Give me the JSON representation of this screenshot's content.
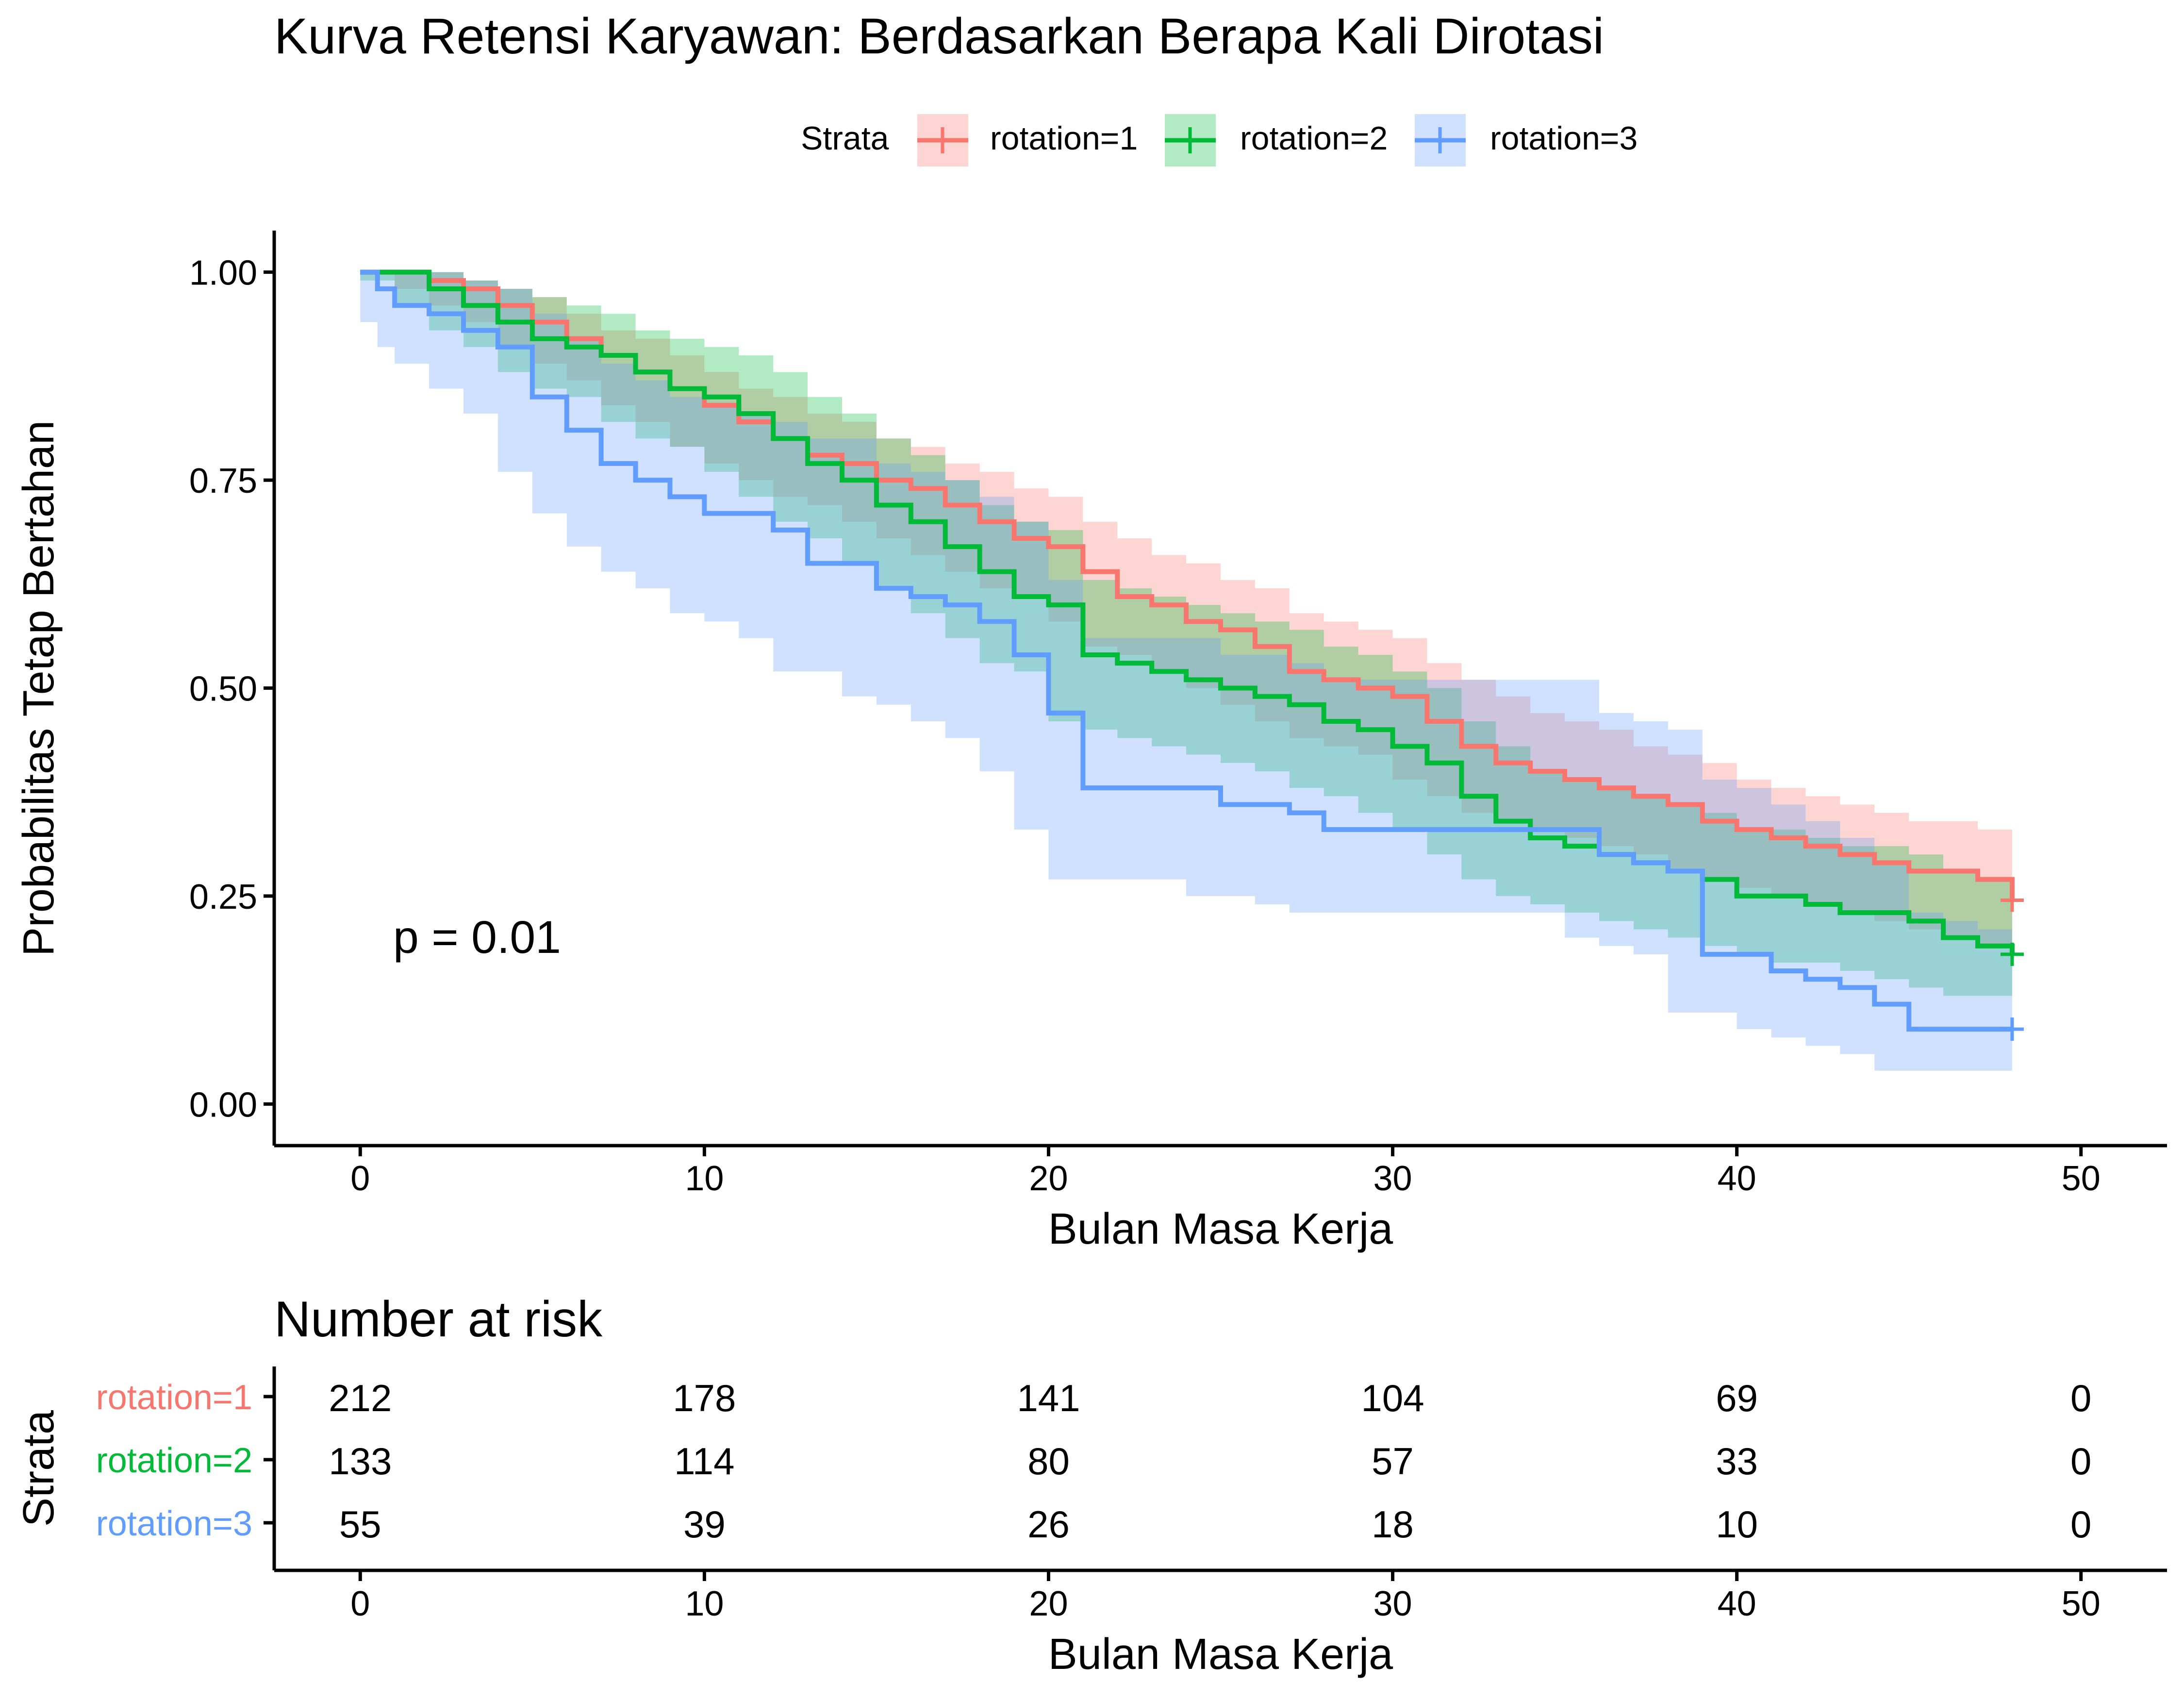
{
  "title": "Kurva Retensi Karyawan: Berdasarkan Berapa Kali Dirotasi",
  "legend": {
    "title": "Strata",
    "items": [
      "rotation=1",
      "rotation=2",
      "rotation=3"
    ]
  },
  "pvalue": "p = 0.01",
  "colors": {
    "rotation=1": "#F8766D",
    "rotation=2": "#00BA38",
    "rotation=3": "#619CFF"
  },
  "chart_data": [
    {
      "type": "line",
      "subtype": "kaplan-meier survival curve with confidence bands",
      "title": "Kurva Retensi Karyawan: Berdasarkan Berapa Kali Dirotasi",
      "xlabel": "Bulan Masa Kerja",
      "ylabel": "Probabilitas Tetap Bertahan",
      "xlim": [
        -2.5,
        52.5
      ],
      "ylim": [
        -0.05,
        1.05
      ],
      "xticks": [
        0,
        10,
        20,
        30,
        40,
        50
      ],
      "xtick_labels": [
        "0",
        "10",
        "20",
        "30",
        "40",
        "50"
      ],
      "yticks": [
        0,
        0.25,
        0.5,
        0.75,
        1
      ],
      "ytick_labels": [
        "0.00",
        "0.25",
        "0.50",
        "0.75",
        "1.00"
      ],
      "grid": false,
      "legend_position": "top",
      "annotation": "p = 0.01",
      "series": [
        {
          "name": "rotation=1",
          "color": "#F8766D",
          "x": [
            0,
            1,
            2,
            3,
            4,
            5,
            6,
            7,
            8,
            9,
            10,
            11,
            12,
            13,
            14,
            15,
            16,
            17,
            18,
            19,
            20,
            21,
            22,
            23,
            24,
            25,
            26,
            27,
            28,
            29,
            30,
            31,
            32,
            33,
            34,
            35,
            36,
            37,
            38,
            39,
            40,
            41,
            42,
            43,
            44,
            45,
            46,
            47,
            48
          ],
          "y": [
            1.0,
            1.0,
            0.99,
            0.98,
            0.96,
            0.94,
            0.92,
            0.9,
            0.88,
            0.86,
            0.84,
            0.82,
            0.8,
            0.78,
            0.77,
            0.75,
            0.74,
            0.72,
            0.7,
            0.68,
            0.67,
            0.64,
            0.61,
            0.6,
            0.58,
            0.57,
            0.55,
            0.52,
            0.51,
            0.5,
            0.49,
            0.46,
            0.43,
            0.41,
            0.4,
            0.39,
            0.38,
            0.37,
            0.36,
            0.34,
            0.33,
            0.32,
            0.31,
            0.3,
            0.29,
            0.28,
            0.28,
            0.27,
            0.245
          ],
          "lower": [
            1.0,
            1.0,
            0.98,
            0.96,
            0.94,
            0.91,
            0.89,
            0.87,
            0.84,
            0.82,
            0.79,
            0.77,
            0.75,
            0.73,
            0.72,
            0.7,
            0.68,
            0.66,
            0.64,
            0.62,
            0.61,
            0.58,
            0.55,
            0.54,
            0.52,
            0.5,
            0.48,
            0.46,
            0.44,
            0.43,
            0.42,
            0.39,
            0.37,
            0.35,
            0.34,
            0.33,
            0.32,
            0.31,
            0.3,
            0.28,
            0.27,
            0.26,
            0.25,
            0.24,
            0.23,
            0.22,
            0.21,
            0.2,
            0.19
          ],
          "upper": [
            1.0,
            1.0,
            1.0,
            0.99,
            0.98,
            0.97,
            0.95,
            0.93,
            0.92,
            0.9,
            0.88,
            0.86,
            0.85,
            0.83,
            0.82,
            0.8,
            0.79,
            0.77,
            0.76,
            0.74,
            0.73,
            0.7,
            0.68,
            0.66,
            0.65,
            0.63,
            0.62,
            0.59,
            0.58,
            0.57,
            0.56,
            0.53,
            0.51,
            0.49,
            0.47,
            0.46,
            0.45,
            0.43,
            0.42,
            0.41,
            0.39,
            0.38,
            0.37,
            0.36,
            0.35,
            0.34,
            0.34,
            0.33,
            0.3
          ],
          "censor_x": 48,
          "censor_y": 0.245
        },
        {
          "name": "rotation=2",
          "color": "#00BA38",
          "x": [
            0,
            1,
            2,
            3,
            4,
            5,
            6,
            7,
            8,
            9,
            10,
            11,
            12,
            13,
            14,
            15,
            16,
            17,
            18,
            19,
            20,
            21,
            22,
            23,
            24,
            25,
            26,
            27,
            28,
            29,
            30,
            31,
            32,
            33,
            34,
            35,
            36,
            37,
            38,
            39,
            40,
            41,
            42,
            43,
            44,
            45,
            46,
            47,
            48
          ],
          "y": [
            1.0,
            1.0,
            0.98,
            0.96,
            0.94,
            0.92,
            0.91,
            0.9,
            0.88,
            0.86,
            0.85,
            0.83,
            0.8,
            0.77,
            0.75,
            0.72,
            0.7,
            0.67,
            0.64,
            0.61,
            0.6,
            0.54,
            0.53,
            0.52,
            0.51,
            0.5,
            0.49,
            0.48,
            0.46,
            0.45,
            0.43,
            0.41,
            0.37,
            0.34,
            0.32,
            0.31,
            0.3,
            0.29,
            0.28,
            0.27,
            0.25,
            0.25,
            0.24,
            0.23,
            0.23,
            0.22,
            0.2,
            0.19,
            0.18
          ],
          "lower": [
            1.0,
            0.99,
            0.96,
            0.93,
            0.91,
            0.88,
            0.86,
            0.85,
            0.82,
            0.8,
            0.79,
            0.76,
            0.73,
            0.7,
            0.68,
            0.65,
            0.62,
            0.59,
            0.56,
            0.53,
            0.52,
            0.46,
            0.45,
            0.44,
            0.43,
            0.42,
            0.41,
            0.4,
            0.38,
            0.37,
            0.35,
            0.33,
            0.3,
            0.27,
            0.25,
            0.24,
            0.23,
            0.22,
            0.21,
            0.2,
            0.19,
            0.18,
            0.17,
            0.17,
            0.16,
            0.15,
            0.14,
            0.13,
            0.13
          ],
          "upper": [
            1.0,
            1.0,
            1.0,
            0.99,
            0.98,
            0.97,
            0.96,
            0.95,
            0.93,
            0.92,
            0.91,
            0.9,
            0.88,
            0.85,
            0.83,
            0.8,
            0.78,
            0.75,
            0.72,
            0.7,
            0.69,
            0.63,
            0.62,
            0.61,
            0.6,
            0.59,
            0.58,
            0.57,
            0.55,
            0.54,
            0.52,
            0.5,
            0.46,
            0.43,
            0.4,
            0.39,
            0.38,
            0.37,
            0.36,
            0.35,
            0.33,
            0.33,
            0.32,
            0.31,
            0.31,
            0.3,
            0.28,
            0.27,
            0.26
          ],
          "censor_x": 48,
          "censor_y": 0.18
        },
        {
          "name": "rotation=3",
          "color": "#619CFF",
          "x": [
            0,
            0.5,
            1,
            2,
            3,
            4,
            5,
            6,
            7,
            8,
            9,
            10,
            11,
            12,
            13,
            14,
            15,
            16,
            17,
            18,
            19,
            20,
            21,
            22,
            23,
            24,
            25,
            26,
            27,
            28,
            29,
            30,
            31,
            32,
            33,
            34,
            35,
            36,
            37,
            38,
            39,
            40,
            41,
            42,
            43,
            44,
            45,
            46,
            47,
            48
          ],
          "y": [
            1.0,
            0.98,
            0.96,
            0.95,
            0.93,
            0.91,
            0.85,
            0.81,
            0.77,
            0.75,
            0.73,
            0.71,
            0.71,
            0.69,
            0.65,
            0.65,
            0.62,
            0.61,
            0.6,
            0.58,
            0.54,
            0.47,
            0.38,
            0.38,
            0.38,
            0.38,
            0.36,
            0.36,
            0.35,
            0.33,
            0.33,
            0.33,
            0.33,
            0.33,
            0.33,
            0.33,
            0.33,
            0.3,
            0.29,
            0.28,
            0.18,
            0.18,
            0.16,
            0.15,
            0.14,
            0.12,
            0.09,
            0.09,
            0.09,
            0.09
          ],
          "lower": [
            1.0,
            0.94,
            0.91,
            0.89,
            0.86,
            0.83,
            0.76,
            0.71,
            0.67,
            0.64,
            0.62,
            0.59,
            0.58,
            0.56,
            0.52,
            0.52,
            0.49,
            0.48,
            0.46,
            0.44,
            0.4,
            0.33,
            0.27,
            0.27,
            0.27,
            0.27,
            0.25,
            0.25,
            0.24,
            0.23,
            0.23,
            0.23,
            0.23,
            0.23,
            0.23,
            0.23,
            0.23,
            0.2,
            0.19,
            0.18,
            0.11,
            0.11,
            0.09,
            0.08,
            0.07,
            0.06,
            0.04,
            0.04,
            0.04,
            0.04
          ],
          "upper": [
            1.0,
            1.0,
            1.0,
            1.0,
            0.99,
            0.98,
            0.95,
            0.92,
            0.89,
            0.87,
            0.85,
            0.84,
            0.83,
            0.82,
            0.8,
            0.8,
            0.77,
            0.76,
            0.75,
            0.73,
            0.7,
            0.63,
            0.56,
            0.56,
            0.56,
            0.56,
            0.54,
            0.54,
            0.53,
            0.51,
            0.51,
            0.51,
            0.51,
            0.51,
            0.51,
            0.51,
            0.51,
            0.47,
            0.46,
            0.45,
            0.39,
            0.38,
            0.36,
            0.34,
            0.32,
            0.29,
            0.23,
            0.22,
            0.21,
            0.2
          ],
          "censor_x": 48,
          "censor_y": 0.09
        }
      ]
    },
    {
      "type": "table",
      "title": "Number at risk",
      "xlabel": "Bulan Masa Kerja",
      "ylabel": "Strata",
      "xlim": [
        -2.5,
        52.5
      ],
      "xticks": [
        0,
        10,
        20,
        30,
        40,
        50
      ],
      "xtick_labels": [
        "0",
        "10",
        "20",
        "30",
        "40",
        "50"
      ],
      "rows": [
        "rotation=1",
        "rotation=2",
        "rotation=3"
      ],
      "values": [
        [
          "212",
          "178",
          "141",
          "104",
          "69",
          "0"
        ],
        [
          "133",
          "114",
          "80",
          "57",
          "33",
          "0"
        ],
        [
          "55",
          "39",
          "26",
          "18",
          "10",
          "0"
        ]
      ]
    }
  ]
}
